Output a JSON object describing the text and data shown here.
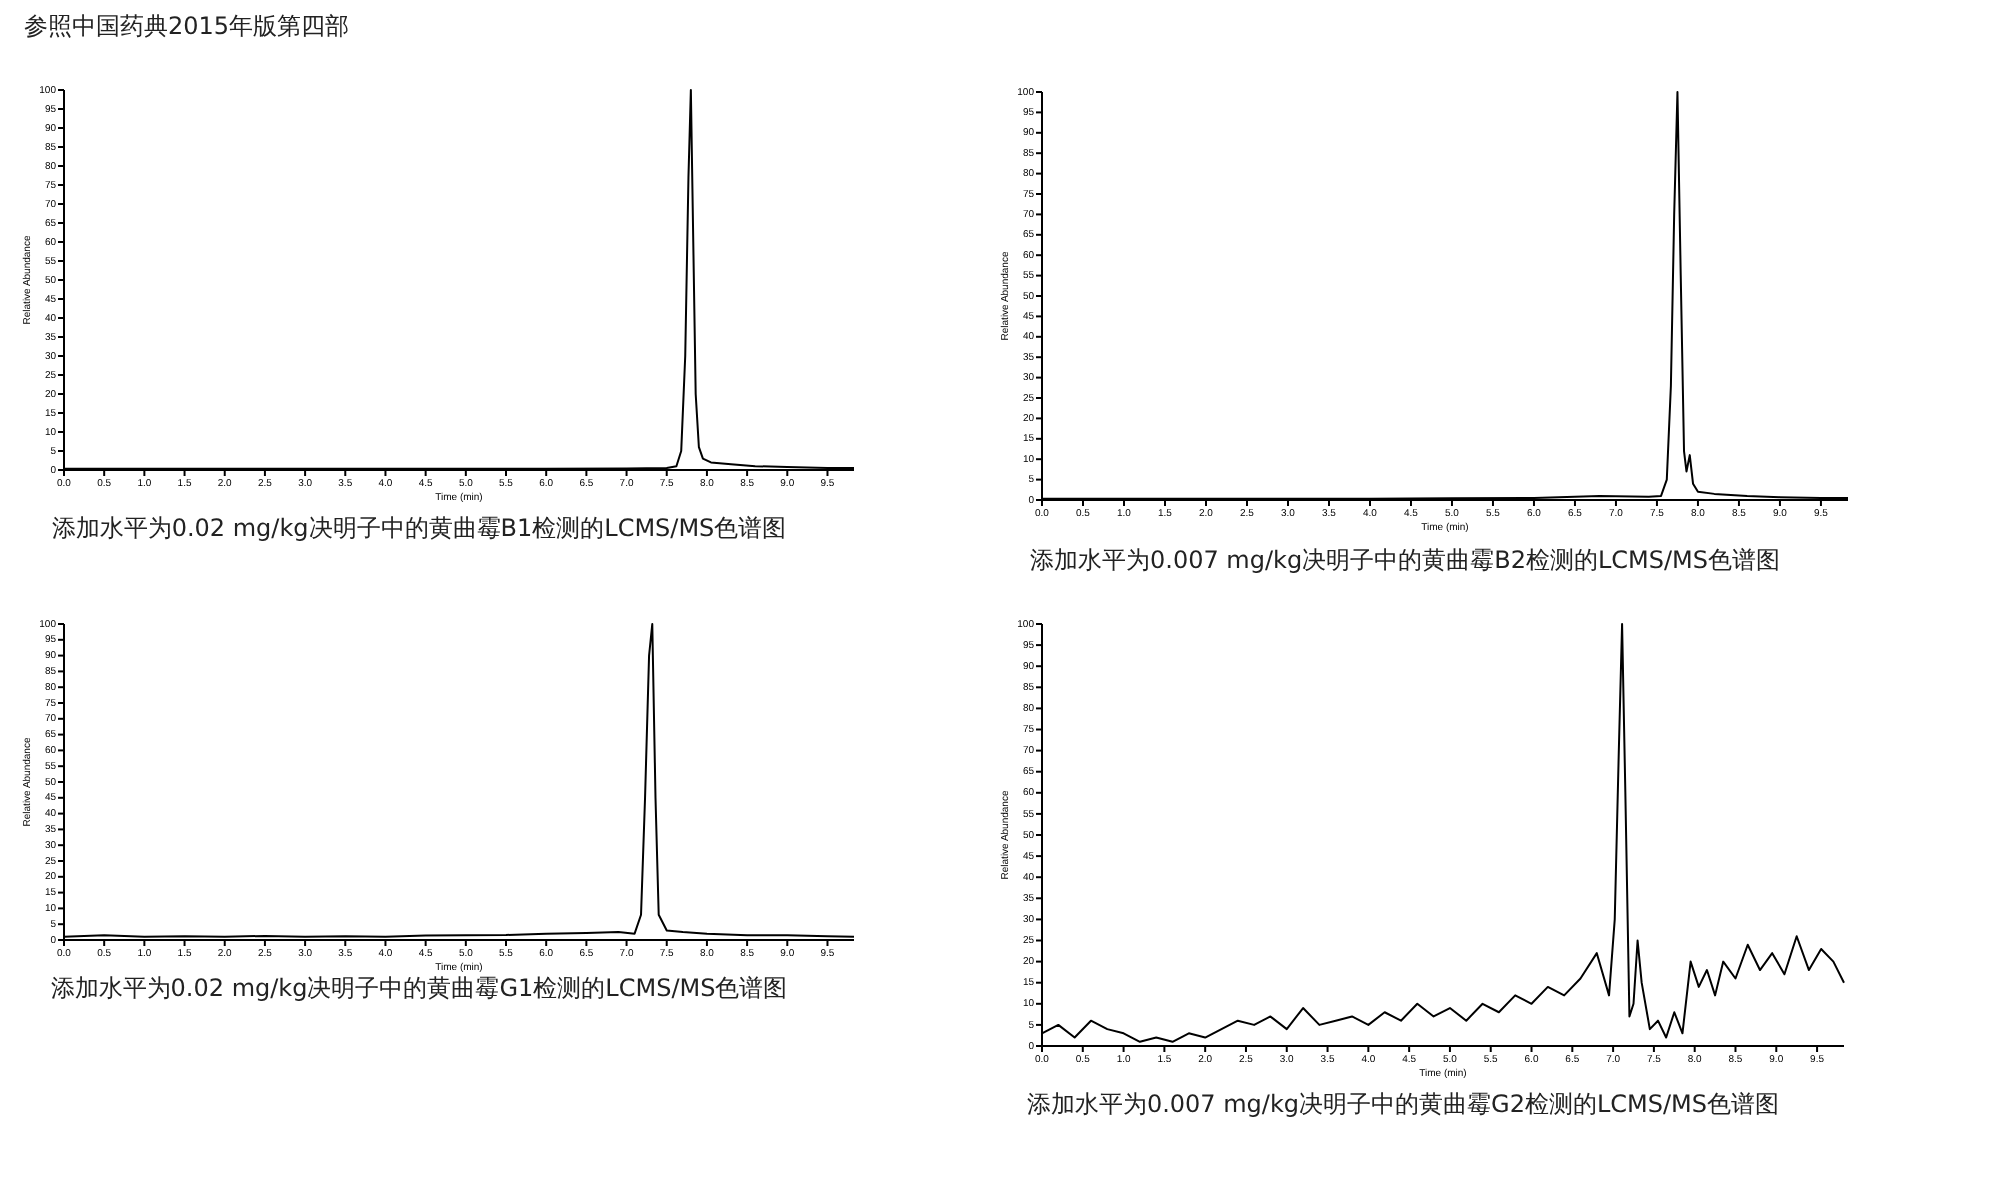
{
  "chart_data": [
    {
      "type": "line",
      "title": "添加水平为0.02 mg/kg决明子中的黄曲霉B1检测的LCMS/MS色谱图",
      "annotations": [
        "参照中国药典2015年版第四部"
      ],
      "xlabel": "Time (min)",
      "ylabel": "Relative Abundance",
      "xlim": [
        0,
        9.83
      ],
      "ylim": [
        0,
        100
      ],
      "xticks": [
        {
          "value": 0,
          "label": "0.0"
        },
        0.5,
        {
          "value": 1,
          "label": "1.0"
        },
        1.5,
        {
          "value": 2,
          "label": "2.0"
        },
        2.5,
        {
          "value": 3,
          "label": "3.0"
        },
        3.5,
        {
          "value": 4,
          "label": "4.0"
        },
        4.5,
        {
          "value": 5,
          "label": "5.0"
        },
        5.5,
        {
          "value": 6,
          "label": "6.0"
        },
        6.5,
        {
          "value": 7,
          "label": "7.0"
        },
        7.5,
        {
          "value": 8,
          "label": "8.0"
        },
        8.5,
        {
          "value": 9,
          "label": "9.0"
        },
        9.5
      ],
      "yticks": [
        0,
        5,
        10,
        15,
        20,
        25,
        30,
        35,
        40,
        45,
        50,
        55,
        60,
        65,
        70,
        75,
        80,
        85,
        90,
        95,
        100
      ],
      "x": [
        0,
        1,
        2,
        3,
        4,
        5,
        6,
        7,
        7.5,
        7.62,
        7.68,
        7.73,
        7.77,
        7.8,
        7.83,
        7.86,
        7.9,
        7.95,
        8.05,
        8.3,
        8.6,
        9,
        9.5,
        9.83
      ],
      "series": [
        {
          "color": "#000000",
          "values": [
            0.3,
            0.3,
            0.3,
            0.3,
            0.3,
            0.3,
            0.3,
            0.4,
            0.5,
            1,
            5,
            30,
            77,
            100,
            60,
            20,
            6,
            3,
            2,
            1.5,
            1,
            0.8,
            0.5,
            0.5
          ]
        }
      ]
    },
    {
      "type": "line",
      "title": "添加水平为0.007 mg/kg决明子中的黄曲霉B2检测的LCMS/MS色谱图",
      "xlabel": "Time (min)",
      "ylabel": "Relative Abundance",
      "xlim": [
        0,
        9.83
      ],
      "ylim": [
        0,
        100
      ],
      "xticks": [
        {
          "value": 0,
          "label": "0.0"
        },
        0.5,
        {
          "value": 1,
          "label": "1.0"
        },
        1.5,
        {
          "value": 2,
          "label": "2.0"
        },
        2.5,
        {
          "value": 3,
          "label": "3.0"
        },
        3.5,
        {
          "value": 4,
          "label": "4.0"
        },
        4.5,
        {
          "value": 5,
          "label": "5.0"
        },
        5.5,
        {
          "value": 6,
          "label": "6.0"
        },
        6.5,
        {
          "value": 7,
          "label": "7.0"
        },
        7.5,
        {
          "value": 8,
          "label": "8.0"
        },
        8.5,
        {
          "value": 9,
          "label": "9.0"
        },
        9.5
      ],
      "yticks": [
        0,
        5,
        10,
        15,
        20,
        25,
        30,
        35,
        40,
        45,
        50,
        55,
        60,
        65,
        70,
        75,
        80,
        85,
        90,
        95,
        100
      ],
      "x": [
        0,
        1,
        2,
        3,
        4,
        5,
        6,
        6.8,
        7.4,
        7.55,
        7.62,
        7.67,
        7.71,
        7.75,
        7.79,
        7.83,
        7.86,
        7.9,
        7.94,
        8,
        8.2,
        8.6,
        9,
        9.5,
        9.83
      ],
      "series": [
        {
          "color": "#000000",
          "values": [
            0.3,
            0.3,
            0.3,
            0.3,
            0.3,
            0.4,
            0.5,
            1,
            0.8,
            1,
            5,
            28,
            70,
            100,
            55,
            12,
            7,
            11,
            4,
            2,
            1.5,
            1,
            0.7,
            0.5,
            0.5
          ]
        }
      ]
    },
    {
      "type": "line",
      "title": "添加水平为0.02 mg/kg决明子中的黄曲霉G1检测的LCMS/MS色谱图",
      "xlabel": "Time (min)",
      "ylabel": "Relative Abundance",
      "xlim": [
        0,
        9.83
      ],
      "ylim": [
        0,
        100
      ],
      "xticks": [
        {
          "value": 0,
          "label": "0.0"
        },
        0.5,
        {
          "value": 1,
          "label": "1.0"
        },
        1.5,
        {
          "value": 2,
          "label": "2.0"
        },
        2.5,
        {
          "value": 3,
          "label": "3.0"
        },
        3.5,
        {
          "value": 4,
          "label": "4.0"
        },
        4.5,
        {
          "value": 5,
          "label": "5.0"
        },
        5.5,
        {
          "value": 6,
          "label": "6.0"
        },
        6.5,
        {
          "value": 7,
          "label": "7.0"
        },
        7.5,
        {
          "value": 8,
          "label": "8.0"
        },
        8.5,
        {
          "value": 9,
          "label": "9.0"
        },
        9.5
      ],
      "yticks": [
        0,
        5,
        10,
        15,
        20,
        25,
        30,
        35,
        40,
        45,
        50,
        55,
        60,
        65,
        70,
        75,
        80,
        85,
        90,
        95,
        100
      ],
      "x": [
        0,
        0.5,
        1,
        1.5,
        2,
        2.5,
        3,
        3.5,
        4,
        4.5,
        5,
        5.5,
        6,
        6.5,
        6.9,
        7.1,
        7.18,
        7.23,
        7.28,
        7.32,
        7.36,
        7.4,
        7.5,
        7.7,
        8,
        8.5,
        9,
        9.5,
        9.83
      ],
      "series": [
        {
          "color": "#000000",
          "values": [
            1,
            1.5,
            1,
            1.2,
            1,
            1.3,
            1,
            1.2,
            1,
            1.4,
            1.5,
            1.6,
            2,
            2.2,
            2.5,
            2,
            8,
            45,
            90,
            100,
            45,
            8,
            3,
            2.5,
            2,
            1.5,
            1.5,
            1.2,
            1
          ]
        }
      ]
    },
    {
      "type": "line",
      "title": "添加水平为0.007 mg/kg决明子中的黄曲霉G2检测的LCMS/MS色谱图",
      "xlabel": "Time (min)",
      "ylabel": "Relative Abundance",
      "xlim": [
        0,
        9.83
      ],
      "ylim": [
        0,
        100
      ],
      "xticks": [
        {
          "value": 0,
          "label": "0.0"
        },
        0.5,
        {
          "value": 1,
          "label": "1.0"
        },
        1.5,
        {
          "value": 2,
          "label": "2.0"
        },
        2.5,
        {
          "value": 3,
          "label": "3.0"
        },
        3.5,
        {
          "value": 4,
          "label": "4.0"
        },
        4.5,
        {
          "value": 5,
          "label": "5.0"
        },
        5.5,
        {
          "value": 6,
          "label": "6.0"
        },
        6.5,
        {
          "value": 7,
          "label": "7.0"
        },
        7.5,
        {
          "value": 8,
          "label": "8.0"
        },
        8.5,
        {
          "value": 9,
          "label": "9.0"
        },
        9.5
      ],
      "yticks": [
        0,
        5,
        10,
        15,
        20,
        25,
        30,
        35,
        40,
        45,
        50,
        55,
        60,
        65,
        70,
        75,
        80,
        85,
        90,
        95,
        100
      ],
      "x": [
        0,
        0.2,
        0.4,
        0.6,
        0.8,
        1,
        1.2,
        1.4,
        1.6,
        1.8,
        2,
        2.2,
        2.4,
        2.6,
        2.8,
        3,
        3.2,
        3.4,
        3.6,
        3.8,
        4,
        4.2,
        4.4,
        4.6,
        4.8,
        5,
        5.2,
        5.4,
        5.6,
        5.8,
        6,
        6.2,
        6.4,
        6.6,
        6.8,
        6.95,
        7.02,
        7.07,
        7.11,
        7.15,
        7.2,
        7.25,
        7.3,
        7.35,
        7.45,
        7.55,
        7.65,
        7.75,
        7.85,
        7.95,
        8.05,
        8.15,
        8.25,
        8.35,
        8.5,
        8.65,
        8.8,
        8.95,
        9.1,
        9.25,
        9.4,
        9.55,
        9.7,
        9.83
      ],
      "series": [
        {
          "color": "#000000",
          "values": [
            3,
            5,
            2,
            6,
            4,
            3,
            1,
            2,
            1,
            3,
            2,
            4,
            6,
            5,
            7,
            4,
            9,
            5,
            6,
            7,
            5,
            8,
            6,
            10,
            7,
            9,
            6,
            10,
            8,
            12,
            10,
            14,
            12,
            16,
            22,
            12,
            30,
            70,
            100,
            60,
            7,
            10,
            25,
            15,
            4,
            6,
            2,
            8,
            3,
            20,
            14,
            18,
            12,
            20,
            16,
            24,
            18,
            22,
            17,
            26,
            18,
            23,
            20,
            15
          ]
        }
      ]
    }
  ]
}
